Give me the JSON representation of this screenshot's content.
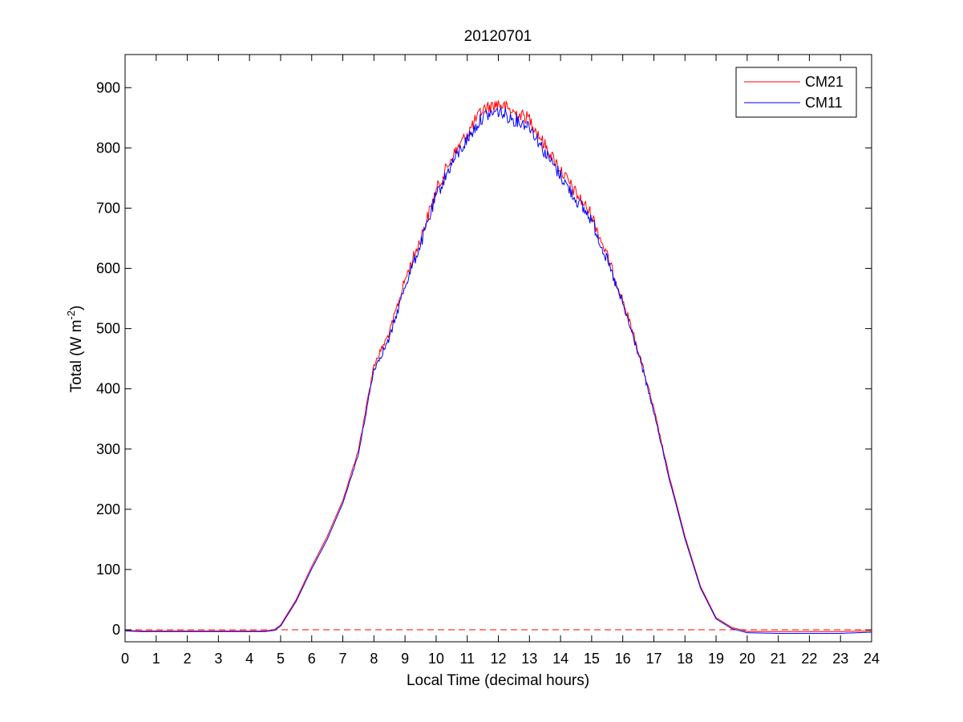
{
  "chart_data": {
    "type": "line",
    "title": "20120701",
    "xlabel": "Local Time (decimal hours)",
    "ylabel": {
      "base": "Total (W m",
      "superscript": "-2",
      "close": ")"
    },
    "xlim": [
      0,
      24
    ],
    "ylim": [
      -20,
      955
    ],
    "x_ticks": [
      0,
      1,
      2,
      3,
      4,
      5,
      6,
      7,
      8,
      9,
      10,
      11,
      12,
      13,
      14,
      15,
      16,
      17,
      18,
      19,
      20,
      21,
      22,
      23,
      24
    ],
    "y_ticks": [
      0,
      100,
      200,
      300,
      400,
      500,
      600,
      700,
      800,
      900
    ],
    "grid": false,
    "legend_position": "top-right",
    "reference_line": {
      "y": 0,
      "style": "dashed",
      "color": "#ff0000"
    },
    "series": [
      {
        "name": "CM21",
        "color": "#ff0000",
        "x": [
          0,
          0.5,
          1,
          2,
          3,
          4,
          4.5,
          4.8,
          5,
          5.5,
          6,
          6.5,
          7,
          7.5,
          8,
          8.5,
          9,
          9.5,
          10,
          10.5,
          11,
          11.5,
          12,
          12.5,
          13,
          13.5,
          14,
          14.5,
          15,
          15.5,
          16,
          16.5,
          17,
          17.5,
          18,
          18.5,
          19,
          19.5,
          20,
          21,
          22,
          23,
          24
        ],
        "y": [
          -1,
          -2,
          -2,
          -2,
          -2,
          -2,
          -2,
          0,
          8,
          50,
          105,
          155,
          215,
          300,
          445,
          500,
          590,
          660,
          740,
          795,
          835,
          875,
          885,
          870,
          860,
          815,
          775,
          735,
          700,
          630,
          555,
          470,
          370,
          255,
          155,
          72,
          20,
          4,
          -3,
          -3,
          -3,
          -3,
          -2
        ]
      },
      {
        "name": "CM11",
        "color": "#0000ff",
        "x": [
          0,
          0.5,
          1,
          2,
          3,
          4,
          4.5,
          4.8,
          5,
          5.5,
          6,
          6.5,
          7,
          7.5,
          8,
          8.5,
          9,
          9.5,
          10,
          10.5,
          11,
          11.5,
          12,
          12.5,
          13,
          13.5,
          14,
          14.5,
          15,
          15.5,
          16,
          16.5,
          17,
          17.5,
          18,
          18.5,
          19,
          19.5,
          20,
          21,
          22,
          23,
          24
        ],
        "y": [
          -2,
          -3,
          -3,
          -3,
          -3,
          -3,
          -3,
          -1,
          6,
          47,
          101,
          150,
          210,
          293,
          438,
          490,
          580,
          650,
          730,
          785,
          825,
          863,
          872,
          858,
          848,
          803,
          765,
          725,
          692,
          622,
          548,
          465,
          365,
          250,
          151,
          69,
          18,
          2,
          -5,
          -6,
          -6,
          -6,
          -4
        ]
      }
    ]
  }
}
